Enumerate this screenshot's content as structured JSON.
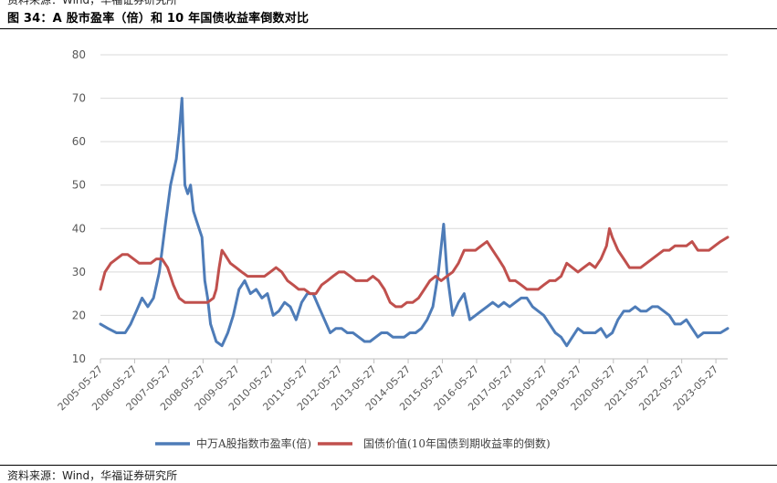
{
  "header": {
    "top_note": "资料来源：Wind，华福证券研究所",
    "title": "图 34：A 股市盈率（倍）和 10 年国债收益率倒数对比"
  },
  "footer": {
    "bottom_note": "资料来源：Wind，华福证券研究所"
  },
  "chart_data": {
    "type": "line",
    "title": "",
    "xlabel": "",
    "ylabel": "",
    "ylim": [
      10,
      80
    ],
    "yticks": [
      10,
      20,
      30,
      40,
      50,
      60,
      70,
      80
    ],
    "grid": "horizontal",
    "legend_position": "bottom",
    "x_tick_labels": [
      "2005-05-27",
      "2006-05-27",
      "2007-05-27",
      "2008-05-27",
      "2009-05-27",
      "2010-05-27",
      "2011-05-27",
      "2012-05-27",
      "2013-05-27",
      "2014-05-27",
      "2015-05-27",
      "2016-05-27",
      "2017-05-27",
      "2018-05-27",
      "2019-05-27",
      "2020-05-27",
      "2021-05-27",
      "2022-05-27",
      "2023-05-27"
    ],
    "x_range": [
      "2005-05-27",
      "2023-09-30"
    ],
    "series": [
      {
        "name": "中万A股指数市盈率(倍)",
        "color": "#4e7cb8",
        "points": [
          [
            "2005-05-27",
            18
          ],
          [
            "2005-08-15",
            17
          ],
          [
            "2005-11-15",
            16
          ],
          [
            "2006-02-15",
            16
          ],
          [
            "2006-04-15",
            18
          ],
          [
            "2006-06-15",
            21
          ],
          [
            "2006-08-15",
            24
          ],
          [
            "2006-10-15",
            22
          ],
          [
            "2006-12-15",
            24
          ],
          [
            "2007-02-15",
            30
          ],
          [
            "2007-04-15",
            40
          ],
          [
            "2007-06-15",
            50
          ],
          [
            "2007-08-15",
            56
          ],
          [
            "2007-09-15",
            62
          ],
          [
            "2007-10-15",
            70
          ],
          [
            "2007-11-15",
            50
          ],
          [
            "2007-12-15",
            48
          ],
          [
            "2008-01-15",
            50
          ],
          [
            "2008-02-15",
            44
          ],
          [
            "2008-03-15",
            42
          ],
          [
            "2008-05-15",
            38
          ],
          [
            "2008-06-15",
            28
          ],
          [
            "2008-07-15",
            24
          ],
          [
            "2008-08-15",
            18
          ],
          [
            "2008-10-15",
            14
          ],
          [
            "2008-12-15",
            13
          ],
          [
            "2009-02-15",
            16
          ],
          [
            "2009-04-15",
            20
          ],
          [
            "2009-06-15",
            26
          ],
          [
            "2009-08-15",
            28
          ],
          [
            "2009-10-15",
            25
          ],
          [
            "2009-12-15",
            26
          ],
          [
            "2010-02-15",
            24
          ],
          [
            "2010-04-15",
            25
          ],
          [
            "2010-06-15",
            20
          ],
          [
            "2010-08-15",
            21
          ],
          [
            "2010-10-15",
            23
          ],
          [
            "2010-12-15",
            22
          ],
          [
            "2011-02-15",
            19
          ],
          [
            "2011-04-15",
            23
          ],
          [
            "2011-06-15",
            25
          ],
          [
            "2011-08-15",
            25
          ],
          [
            "2011-10-15",
            22
          ],
          [
            "2011-12-15",
            19
          ],
          [
            "2012-02-15",
            16
          ],
          [
            "2012-04-15",
            17
          ],
          [
            "2012-06-15",
            17
          ],
          [
            "2012-08-15",
            16
          ],
          [
            "2012-10-15",
            16
          ],
          [
            "2012-12-15",
            15
          ],
          [
            "2013-02-15",
            14
          ],
          [
            "2013-04-15",
            14
          ],
          [
            "2013-06-15",
            15
          ],
          [
            "2013-08-15",
            16
          ],
          [
            "2013-10-15",
            16
          ],
          [
            "2013-12-15",
            15
          ],
          [
            "2014-02-15",
            15
          ],
          [
            "2014-04-15",
            15
          ],
          [
            "2014-06-15",
            16
          ],
          [
            "2014-08-15",
            16
          ],
          [
            "2014-10-15",
            17
          ],
          [
            "2014-12-15",
            19
          ],
          [
            "2015-02-15",
            22
          ],
          [
            "2015-04-15",
            30
          ],
          [
            "2015-06-10",
            41
          ],
          [
            "2015-07-15",
            30
          ],
          [
            "2015-09-15",
            20
          ],
          [
            "2015-11-15",
            23
          ],
          [
            "2016-01-15",
            25
          ],
          [
            "2016-03-15",
            19
          ],
          [
            "2016-05-15",
            20
          ],
          [
            "2016-07-15",
            21
          ],
          [
            "2016-09-15",
            22
          ],
          [
            "2016-11-15",
            23
          ],
          [
            "2017-01-15",
            22
          ],
          [
            "2017-03-15",
            23
          ],
          [
            "2017-05-15",
            22
          ],
          [
            "2017-07-15",
            23
          ],
          [
            "2017-09-15",
            24
          ],
          [
            "2017-11-15",
            24
          ],
          [
            "2018-01-15",
            22
          ],
          [
            "2018-03-15",
            21
          ],
          [
            "2018-05-15",
            20
          ],
          [
            "2018-07-15",
            18
          ],
          [
            "2018-09-15",
            16
          ],
          [
            "2018-11-15",
            15
          ],
          [
            "2019-01-15",
            13
          ],
          [
            "2019-03-15",
            15
          ],
          [
            "2019-05-15",
            17
          ],
          [
            "2019-07-15",
            16
          ],
          [
            "2019-09-15",
            16
          ],
          [
            "2019-11-15",
            16
          ],
          [
            "2020-01-15",
            17
          ],
          [
            "2020-03-15",
            15
          ],
          [
            "2020-05-15",
            16
          ],
          [
            "2020-07-15",
            19
          ],
          [
            "2020-09-15",
            21
          ],
          [
            "2020-11-15",
            21
          ],
          [
            "2021-01-15",
            22
          ],
          [
            "2021-03-15",
            21
          ],
          [
            "2021-05-15",
            21
          ],
          [
            "2021-07-15",
            22
          ],
          [
            "2021-09-15",
            22
          ],
          [
            "2021-11-15",
            21
          ],
          [
            "2022-01-15",
            20
          ],
          [
            "2022-03-15",
            18
          ],
          [
            "2022-05-15",
            18
          ],
          [
            "2022-07-15",
            19
          ],
          [
            "2022-09-15",
            17
          ],
          [
            "2022-11-15",
            15
          ],
          [
            "2023-01-15",
            16
          ],
          [
            "2023-03-15",
            16
          ],
          [
            "2023-05-15",
            16
          ],
          [
            "2023-07-15",
            16
          ],
          [
            "2023-09-30",
            17
          ]
        ]
      },
      {
        "name": "国债价值(10年国债到期收益率的倒数)",
        "color": "#c0504d",
        "points": [
          [
            "2005-05-27",
            26
          ],
          [
            "2005-07-15",
            30
          ],
          [
            "2005-09-15",
            32
          ],
          [
            "2005-11-15",
            33
          ],
          [
            "2006-01-15",
            34
          ],
          [
            "2006-03-15",
            34
          ],
          [
            "2006-05-15",
            33
          ],
          [
            "2006-07-15",
            32
          ],
          [
            "2006-09-15",
            32
          ],
          [
            "2006-11-15",
            32
          ],
          [
            "2007-01-15",
            33
          ],
          [
            "2007-03-15",
            33
          ],
          [
            "2007-05-15",
            31
          ],
          [
            "2007-07-15",
            27
          ],
          [
            "2007-09-15",
            24
          ],
          [
            "2007-11-15",
            23
          ],
          [
            "2008-01-15",
            23
          ],
          [
            "2008-03-15",
            23
          ],
          [
            "2008-05-15",
            23
          ],
          [
            "2008-07-15",
            23
          ],
          [
            "2008-09-15",
            24
          ],
          [
            "2008-10-15",
            26
          ],
          [
            "2008-11-15",
            31
          ],
          [
            "2008-12-15",
            35
          ],
          [
            "2009-01-15",
            34
          ],
          [
            "2009-03-15",
            32
          ],
          [
            "2009-05-15",
            31
          ],
          [
            "2009-07-15",
            30
          ],
          [
            "2009-09-15",
            29
          ],
          [
            "2009-11-15",
            29
          ],
          [
            "2010-01-15",
            29
          ],
          [
            "2010-03-15",
            29
          ],
          [
            "2010-05-15",
            30
          ],
          [
            "2010-07-15",
            31
          ],
          [
            "2010-09-15",
            30
          ],
          [
            "2010-11-15",
            28
          ],
          [
            "2011-01-15",
            27
          ],
          [
            "2011-03-15",
            26
          ],
          [
            "2011-05-15",
            26
          ],
          [
            "2011-07-15",
            25
          ],
          [
            "2011-09-15",
            25
          ],
          [
            "2011-11-15",
            27
          ],
          [
            "2012-01-15",
            28
          ],
          [
            "2012-03-15",
            29
          ],
          [
            "2012-05-15",
            30
          ],
          [
            "2012-07-15",
            30
          ],
          [
            "2012-09-15",
            29
          ],
          [
            "2012-11-15",
            28
          ],
          [
            "2013-01-15",
            28
          ],
          [
            "2013-03-15",
            28
          ],
          [
            "2013-05-15",
            29
          ],
          [
            "2013-07-15",
            28
          ],
          [
            "2013-09-15",
            26
          ],
          [
            "2013-11-15",
            23
          ],
          [
            "2014-01-15",
            22
          ],
          [
            "2014-03-15",
            22
          ],
          [
            "2014-05-15",
            23
          ],
          [
            "2014-07-15",
            23
          ],
          [
            "2014-09-15",
            24
          ],
          [
            "2014-11-15",
            26
          ],
          [
            "2015-01-15",
            28
          ],
          [
            "2015-03-15",
            29
          ],
          [
            "2015-05-15",
            28
          ],
          [
            "2015-07-15",
            29
          ],
          [
            "2015-09-15",
            30
          ],
          [
            "2015-11-15",
            32
          ],
          [
            "2016-01-15",
            35
          ],
          [
            "2016-03-15",
            35
          ],
          [
            "2016-05-15",
            35
          ],
          [
            "2016-07-15",
            36
          ],
          [
            "2016-09-15",
            37
          ],
          [
            "2016-11-15",
            35
          ],
          [
            "2017-01-15",
            33
          ],
          [
            "2017-03-15",
            31
          ],
          [
            "2017-05-15",
            28
          ],
          [
            "2017-07-15",
            28
          ],
          [
            "2017-09-15",
            27
          ],
          [
            "2017-11-15",
            26
          ],
          [
            "2018-01-15",
            26
          ],
          [
            "2018-03-15",
            26
          ],
          [
            "2018-05-15",
            27
          ],
          [
            "2018-07-15",
            28
          ],
          [
            "2018-09-15",
            28
          ],
          [
            "2018-11-15",
            29
          ],
          [
            "2019-01-15",
            32
          ],
          [
            "2019-03-15",
            31
          ],
          [
            "2019-05-15",
            30
          ],
          [
            "2019-07-15",
            31
          ],
          [
            "2019-09-15",
            32
          ],
          [
            "2019-11-15",
            31
          ],
          [
            "2020-01-15",
            33
          ],
          [
            "2020-03-15",
            36
          ],
          [
            "2020-04-15",
            40
          ],
          [
            "2020-05-15",
            38
          ],
          [
            "2020-07-15",
            35
          ],
          [
            "2020-09-15",
            33
          ],
          [
            "2020-11-15",
            31
          ],
          [
            "2021-01-15",
            31
          ],
          [
            "2021-03-15",
            31
          ],
          [
            "2021-05-15",
            32
          ],
          [
            "2021-07-15",
            33
          ],
          [
            "2021-09-15",
            34
          ],
          [
            "2021-11-15",
            35
          ],
          [
            "2022-01-15",
            35
          ],
          [
            "2022-03-15",
            36
          ],
          [
            "2022-05-15",
            36
          ],
          [
            "2022-07-15",
            36
          ],
          [
            "2022-09-15",
            37
          ],
          [
            "2022-11-15",
            35
          ],
          [
            "2023-01-15",
            35
          ],
          [
            "2023-03-15",
            35
          ],
          [
            "2023-05-15",
            36
          ],
          [
            "2023-07-15",
            37
          ],
          [
            "2023-09-30",
            38
          ]
        ]
      }
    ]
  }
}
